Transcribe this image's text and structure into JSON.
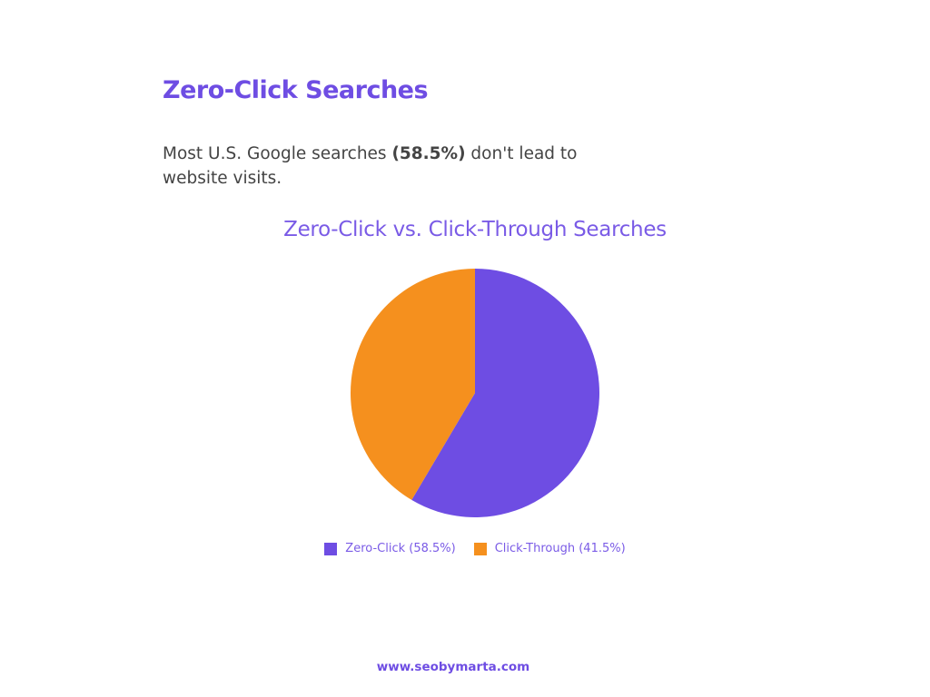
{
  "header": {
    "title": "Zero-Click Searches",
    "desc_pre": "Most U.S. Google searches ",
    "desc_bold": "(58.5%)",
    "desc_post": " don't lead to website visits."
  },
  "chart_data": {
    "type": "pie",
    "title": "Zero-Click vs. Click-Through Searches",
    "categories": [
      "Zero-Click",
      "Click-Through"
    ],
    "values": [
      58.5,
      41.5
    ],
    "colors": [
      "#6e4de3",
      "#f5901e"
    ],
    "legend_labels": [
      "Zero-Click (58.5%)",
      "Click-Through (41.5%)"
    ],
    "legend_placement": "bottom"
  },
  "footer": {
    "url": "www.seobymarta.com"
  }
}
